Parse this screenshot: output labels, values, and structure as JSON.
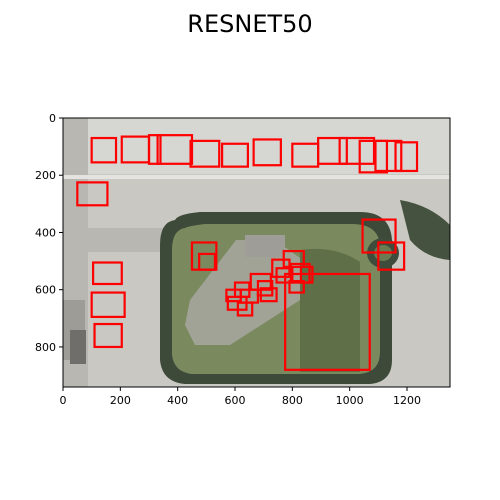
{
  "chart_data": {
    "type": "image-detections",
    "title": "RESNET50",
    "background": "aerial airport imagery",
    "xlim": [
      0,
      1350
    ],
    "ylim": [
      940,
      0
    ],
    "x_ticks": [
      0,
      200,
      400,
      600,
      800,
      1000,
      1200
    ],
    "y_ticks": [
      0,
      200,
      400,
      600,
      800
    ],
    "box_color": "#ff0000",
    "boxes": [
      {
        "x0": 100,
        "y0": 70,
        "x1": 185,
        "y1": 155
      },
      {
        "x0": 205,
        "y0": 65,
        "x1": 300,
        "y1": 155
      },
      {
        "x0": 300,
        "y0": 60,
        "x1": 340,
        "y1": 160
      },
      {
        "x0": 330,
        "y0": 60,
        "x1": 450,
        "y1": 160
      },
      {
        "x0": 445,
        "y0": 80,
        "x1": 545,
        "y1": 170
      },
      {
        "x0": 555,
        "y0": 90,
        "x1": 645,
        "y1": 170
      },
      {
        "x0": 665,
        "y0": 75,
        "x1": 760,
        "y1": 165
      },
      {
        "x0": 800,
        "y0": 90,
        "x1": 890,
        "y1": 170
      },
      {
        "x0": 890,
        "y0": 70,
        "x1": 990,
        "y1": 160
      },
      {
        "x0": 965,
        "y0": 70,
        "x1": 1085,
        "y1": 160
      },
      {
        "x0": 1035,
        "y0": 80,
        "x1": 1130,
        "y1": 190
      },
      {
        "x0": 1090,
        "y0": 80,
        "x1": 1180,
        "y1": 185
      },
      {
        "x0": 1160,
        "y0": 85,
        "x1": 1235,
        "y1": 185
      },
      {
        "x0": 50,
        "y0": 225,
        "x1": 155,
        "y1": 305
      },
      {
        "x0": 1045,
        "y0": 355,
        "x1": 1160,
        "y1": 470
      },
      {
        "x0": 1100,
        "y0": 435,
        "x1": 1190,
        "y1": 530
      },
      {
        "x0": 450,
        "y0": 435,
        "x1": 535,
        "y1": 530
      },
      {
        "x0": 475,
        "y0": 475,
        "x1": 530,
        "y1": 530
      },
      {
        "x0": 105,
        "y0": 505,
        "x1": 205,
        "y1": 580
      },
      {
        "x0": 100,
        "y0": 610,
        "x1": 215,
        "y1": 695
      },
      {
        "x0": 110,
        "y0": 720,
        "x1": 205,
        "y1": 800
      },
      {
        "x0": 775,
        "y0": 545,
        "x1": 1070,
        "y1": 880
      },
      {
        "x0": 770,
        "y0": 465,
        "x1": 840,
        "y1": 520
      },
      {
        "x0": 795,
        "y0": 510,
        "x1": 860,
        "y1": 575
      },
      {
        "x0": 830,
        "y0": 520,
        "x1": 870,
        "y1": 575
      },
      {
        "x0": 730,
        "y0": 495,
        "x1": 790,
        "y1": 555
      },
      {
        "x0": 745,
        "y0": 525,
        "x1": 800,
        "y1": 575
      },
      {
        "x0": 655,
        "y0": 545,
        "x1": 725,
        "y1": 600
      },
      {
        "x0": 680,
        "y0": 570,
        "x1": 730,
        "y1": 620
      },
      {
        "x0": 600,
        "y0": 575,
        "x1": 650,
        "y1": 625
      },
      {
        "x0": 620,
        "y0": 600,
        "x1": 680,
        "y1": 645
      },
      {
        "x0": 570,
        "y0": 600,
        "x1": 620,
        "y1": 640
      },
      {
        "x0": 575,
        "y0": 625,
        "x1": 640,
        "y1": 670
      },
      {
        "x0": 610,
        "y0": 645,
        "x1": 660,
        "y1": 690
      },
      {
        "x0": 690,
        "y0": 595,
        "x1": 745,
        "y1": 640
      },
      {
        "x0": 790,
        "y0": 570,
        "x1": 840,
        "y1": 610
      }
    ]
  }
}
